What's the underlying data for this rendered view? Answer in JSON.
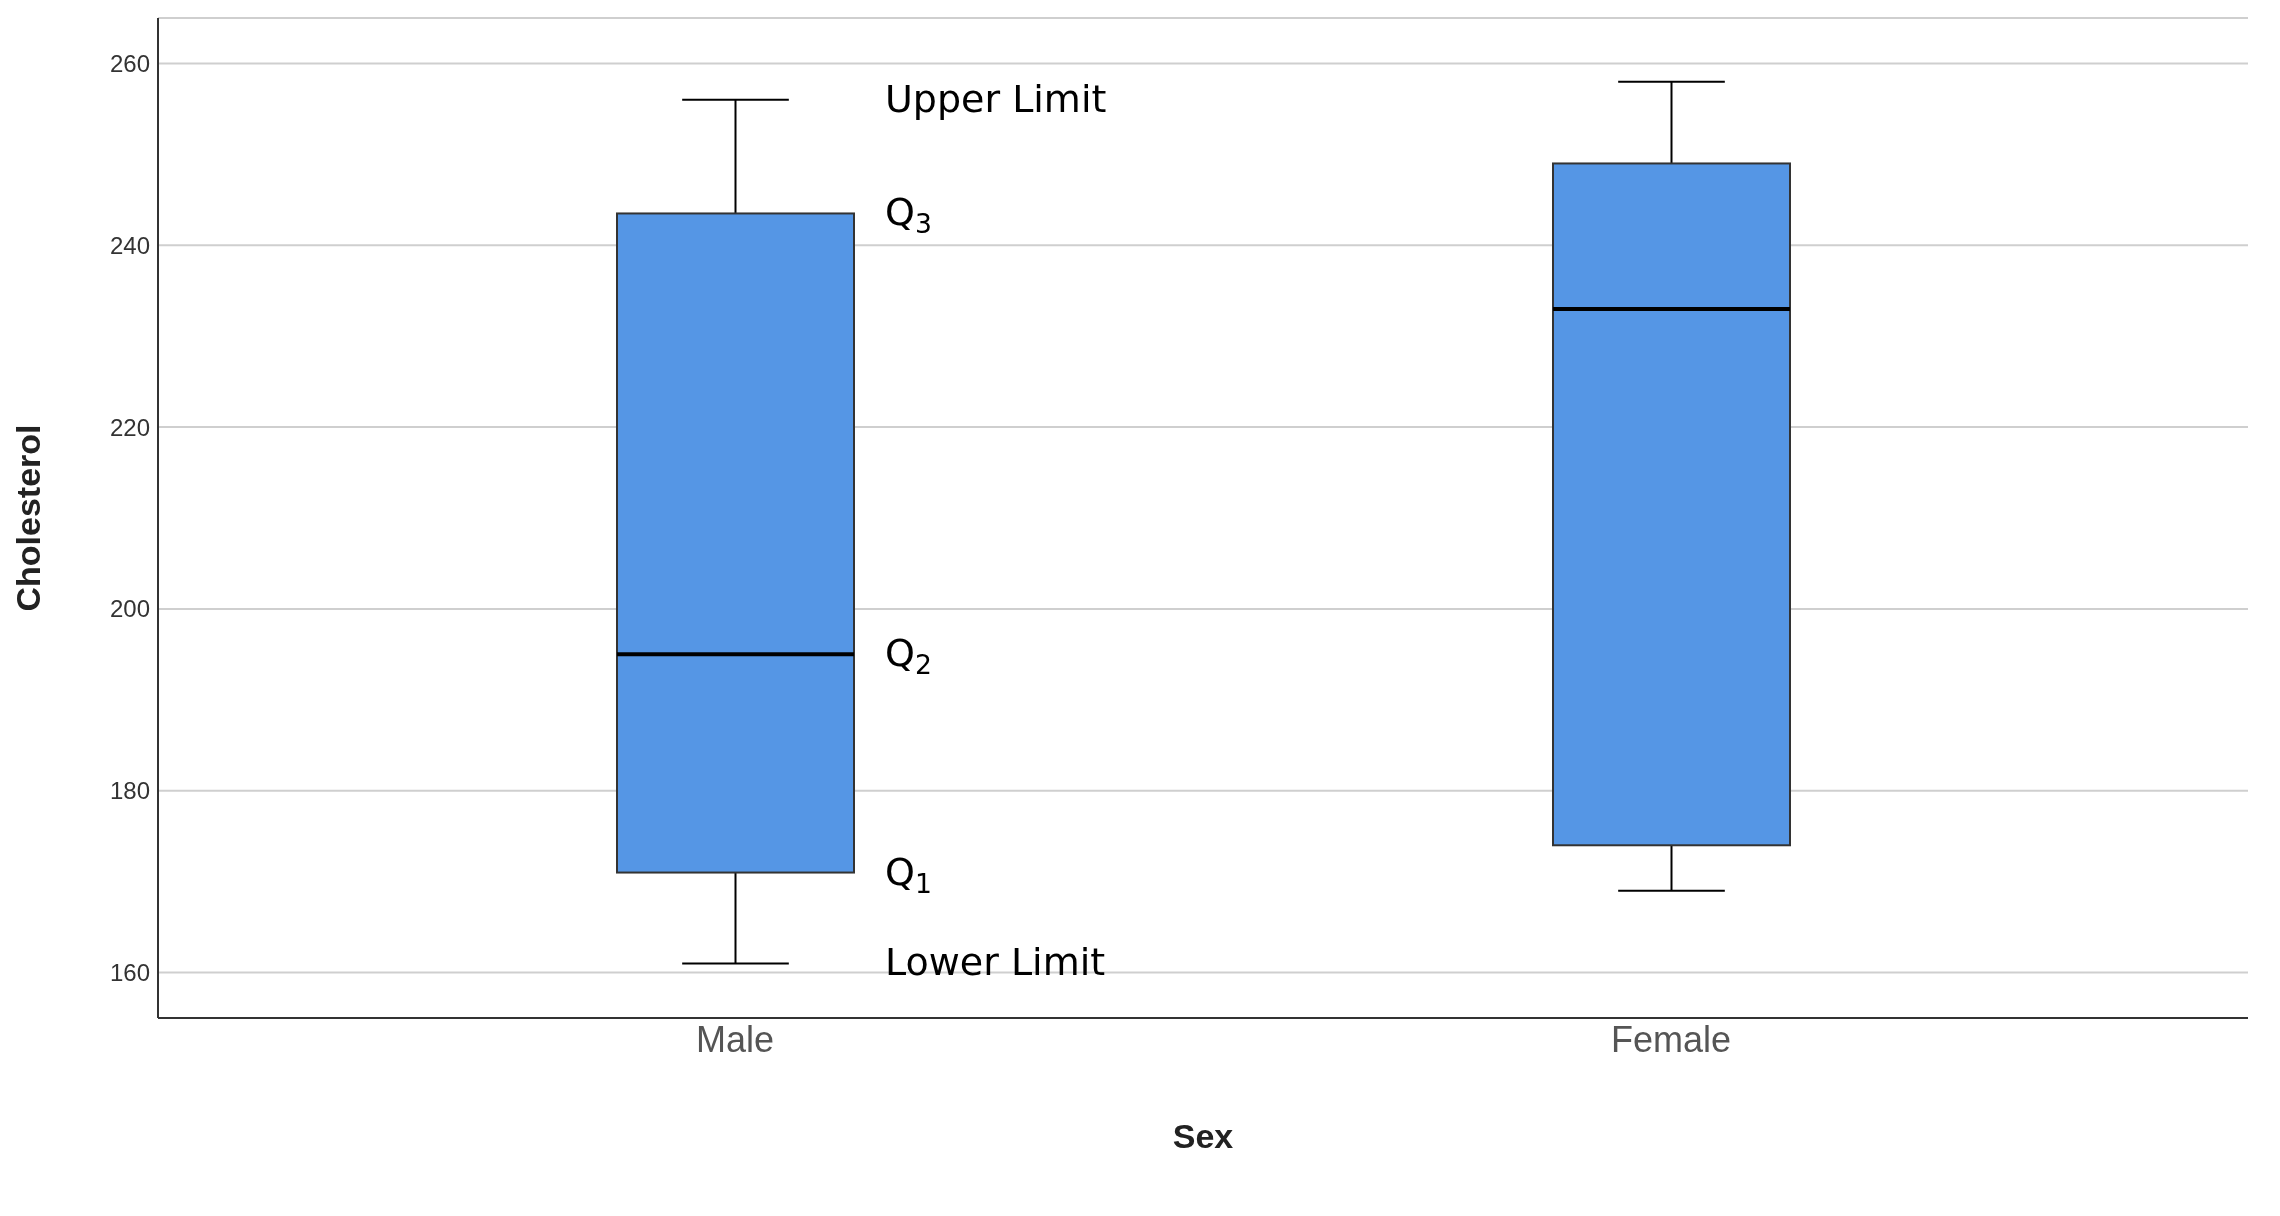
{
  "chart_data": {
    "type": "box",
    "xlabel": "Sex",
    "ylabel": "Cholesterol",
    "categories": [
      "Male",
      "Female"
    ],
    "boxes": [
      {
        "low": 161,
        "q1": 171,
        "median": 195,
        "q3": 243.5,
        "high": 256
      },
      {
        "low": 169,
        "q1": 174,
        "median": 233,
        "q3": 249,
        "high": 258
      }
    ],
    "color": "#5596e5",
    "ylim": [
      155,
      265
    ],
    "yticks": [
      160,
      180,
      200,
      220,
      240,
      260
    ],
    "grid": "y",
    "legend": false,
    "annotations": [
      "Upper Limit",
      "Q$_{3}$",
      "Q$_{2}$",
      "Q$_{1}$",
      "Lower Limit"
    ]
  }
}
